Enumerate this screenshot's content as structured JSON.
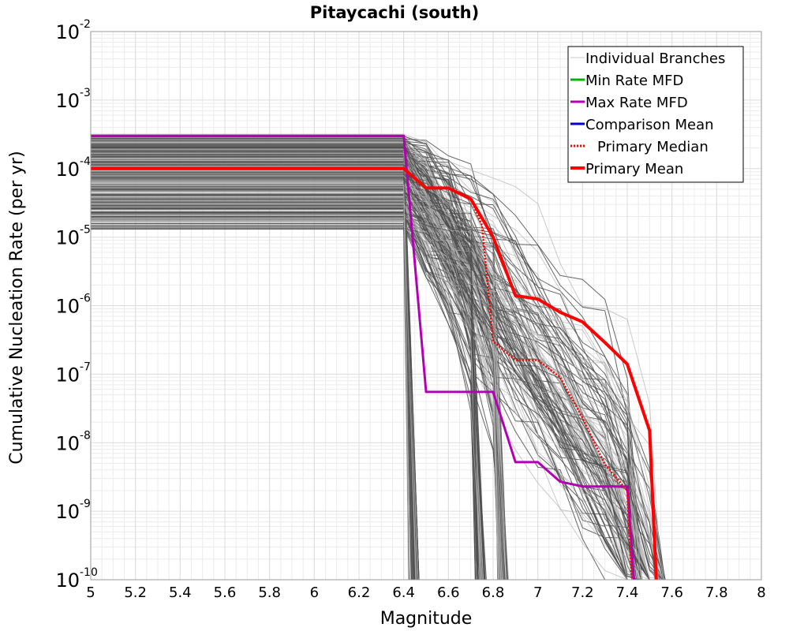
{
  "chart_data": {
    "type": "line",
    "title": "Pitaycachi (south)",
    "xlabel": "Magnitude",
    "ylabel": "Cumulative Nucleation Rate (per yr)",
    "xlim": [
      5,
      8
    ],
    "ylim": [
      1e-10,
      0.01
    ],
    "yscale": "log",
    "grid": true,
    "legend_position": "top-right",
    "x_ticks": [
      "5",
      "5.2",
      "5.4",
      "5.6",
      "5.8",
      "6",
      "6.2",
      "6.4",
      "6.6",
      "6.8",
      "7",
      "7.2",
      "7.4",
      "7.6",
      "7.8",
      "8"
    ],
    "y_ticks": [
      {
        "base": "10",
        "exp": "-10"
      },
      {
        "base": "10",
        "exp": "-9"
      },
      {
        "base": "10",
        "exp": "-8"
      },
      {
        "base": "10",
        "exp": "-7"
      },
      {
        "base": "10",
        "exp": "-6"
      },
      {
        "base": "10",
        "exp": "-5"
      },
      {
        "base": "10",
        "exp": "-4"
      },
      {
        "base": "10",
        "exp": "-3"
      },
      {
        "base": "10",
        "exp": "-2"
      }
    ],
    "legend": [
      {
        "label": "Individual Branches",
        "color": "#c8c8c8",
        "style": "solid"
      },
      {
        "label": "Min Rate MFD",
        "color": "#00b400",
        "style": "solid"
      },
      {
        "label": "Max Rate MFD",
        "color": "#b400b4",
        "style": "solid"
      },
      {
        "label": "Comparison Mean",
        "color": "#0000c8",
        "style": "solid"
      },
      {
        "label": "Primary Median",
        "color": "#ff0000",
        "style": "dotted"
      },
      {
        "label": "Primary Mean",
        "color": "#ff0000",
        "style": "solid"
      }
    ],
    "series": [
      {
        "name": "Max Rate MFD",
        "color": "#b400b4",
        "x": [
          5.0,
          6.4,
          6.5,
          6.8,
          6.9,
          7.0,
          7.1,
          7.2,
          7.3,
          7.4,
          7.43
        ],
        "y": [
          0.0003,
          0.0003,
          5.5e-08,
          5.5e-08,
          5.2e-09,
          5.2e-09,
          2.7e-09,
          2.3e-09,
          2.3e-09,
          2.3e-09,
          1e-10
        ]
      },
      {
        "name": "Primary Median",
        "color": "#ff0000",
        "x": [
          5.0,
          6.4,
          6.5,
          6.6,
          6.7,
          6.75,
          6.8,
          6.9,
          7.0,
          7.1,
          7.2,
          7.3,
          7.4,
          7.42
        ],
        "y": [
          0.0001,
          0.0001,
          5.2e-05,
          5.2e-05,
          3.6e-05,
          1.5e-05,
          3e-07,
          1.6e-07,
          1.6e-07,
          9e-08,
          2.3e-08,
          4.8e-09,
          2e-09,
          1e-10
        ]
      },
      {
        "name": "Primary Mean",
        "color": "#ff0000",
        "x": [
          5.0,
          6.4,
          6.5,
          6.6,
          6.7,
          6.8,
          6.9,
          7.0,
          7.1,
          7.2,
          7.3,
          7.4,
          7.5,
          7.53
        ],
        "y": [
          0.0001,
          0.0001,
          5.2e-05,
          5.2e-05,
          3.6e-05,
          1e-05,
          1.4e-06,
          1.25e-06,
          8e-07,
          5.8e-07,
          2.9e-07,
          1.4e-07,
          1.5e-08,
          1e-10
        ]
      }
    ]
  }
}
